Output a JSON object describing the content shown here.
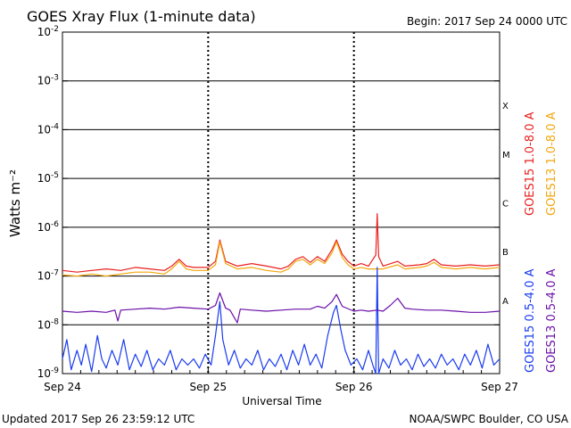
{
  "title": "GOES Xray Flux (1-minute data)",
  "begin_label": "Begin:  2017 Sep 24 0000 UTC",
  "footer": {
    "updated": "Updated 2017 Sep 26 23:59:12 UTC",
    "credit": "NOAA/SWPC Boulder, CO USA"
  },
  "legend": {
    "upper": [
      {
        "label": "GOES15 1.0-8.0 A",
        "color": "#e8201e"
      },
      {
        "label": "GOES13 1.0-8.0 A",
        "color": "#f2a60c"
      }
    ],
    "lower": [
      {
        "label": "GOES15 0.5-4.0 A",
        "color": "#1a3cf0"
      },
      {
        "label": "GOES13 0.5-4.0 A",
        "color": "#6a0fa8"
      }
    ]
  },
  "chart_data": {
    "type": "line",
    "title": "GOES Xray Flux (1-minute data)",
    "xlabel": "Universal Time",
    "ylabel": "Watts m⁻²",
    "y_scale": "log",
    "ylim": [
      1e-09,
      0.01
    ],
    "x_ticks": [
      "Sep 24",
      "Sep 25",
      "Sep 26",
      "Sep 27"
    ],
    "y_ticks": [
      {
        "base": "10",
        "exp": "-9"
      },
      {
        "base": "10",
        "exp": "-8"
      },
      {
        "base": "10",
        "exp": "-7"
      },
      {
        "base": "10",
        "exp": "-6"
      },
      {
        "base": "10",
        "exp": "-5"
      },
      {
        "base": "10",
        "exp": "-4"
      },
      {
        "base": "10",
        "exp": "-3"
      },
      {
        "base": "10",
        "exp": "-2"
      }
    ],
    "flare_classes": [
      {
        "label": "A",
        "level": 1e-08
      },
      {
        "label": "B",
        "level": 1e-07
      },
      {
        "label": "C",
        "level": 1e-06
      },
      {
        "label": "M",
        "level": 1e-05
      },
      {
        "label": "X",
        "level": 0.0001
      }
    ],
    "series": [
      {
        "name": "GOES15 1.0-8.0 A",
        "color": "#e8201e",
        "points": [
          [
            0,
            1.3e-07
          ],
          [
            0.1,
            1.2e-07
          ],
          [
            0.2,
            1.3e-07
          ],
          [
            0.3,
            1.4e-07
          ],
          [
            0.4,
            1.3e-07
          ],
          [
            0.5,
            1.5e-07
          ],
          [
            0.6,
            1.4e-07
          ],
          [
            0.7,
            1.3e-07
          ],
          [
            0.75,
            1.6e-07
          ],
          [
            0.8,
            2.2e-07
          ],
          [
            0.85,
            1.6e-07
          ],
          [
            0.9,
            1.5e-07
          ],
          [
            1.0,
            1.5e-07
          ],
          [
            1.05,
            2e-07
          ],
          [
            1.08,
            5.5e-07
          ],
          [
            1.12,
            2e-07
          ],
          [
            1.2,
            1.6e-07
          ],
          [
            1.3,
            1.8e-07
          ],
          [
            1.4,
            1.6e-07
          ],
          [
            1.5,
            1.4e-07
          ],
          [
            1.55,
            1.6e-07
          ],
          [
            1.6,
            2.2e-07
          ],
          [
            1.65,
            2.5e-07
          ],
          [
            1.7,
            1.9e-07
          ],
          [
            1.75,
            2.5e-07
          ],
          [
            1.8,
            2e-07
          ],
          [
            1.85,
            3.5e-07
          ],
          [
            1.88,
            5.5e-07
          ],
          [
            1.92,
            2.8e-07
          ],
          [
            1.96,
            2e-07
          ],
          [
            2.0,
            1.6e-07
          ],
          [
            2.05,
            1.8e-07
          ],
          [
            2.1,
            1.6e-07
          ],
          [
            2.15,
            2.7e-07
          ],
          [
            2.16,
            1.9e-06
          ],
          [
            2.17,
            2.5e-07
          ],
          [
            2.2,
            1.6e-07
          ],
          [
            2.3,
            2e-07
          ],
          [
            2.35,
            1.6e-07
          ],
          [
            2.45,
            1.7e-07
          ],
          [
            2.5,
            1.8e-07
          ],
          [
            2.55,
            2.2e-07
          ],
          [
            2.6,
            1.7e-07
          ],
          [
            2.7,
            1.6e-07
          ],
          [
            2.8,
            1.7e-07
          ],
          [
            2.9,
            1.6e-07
          ],
          [
            3.0,
            1.7e-07
          ]
        ]
      },
      {
        "name": "GOES13 1.0-8.0 A",
        "color": "#f2a60c",
        "points": [
          [
            0,
            1.05e-07
          ],
          [
            0.1,
            1e-07
          ],
          [
            0.2,
            1.1e-07
          ],
          [
            0.3,
            1e-07
          ],
          [
            0.4,
            1.1e-07
          ],
          [
            0.5,
            1.2e-07
          ],
          [
            0.6,
            1.2e-07
          ],
          [
            0.7,
            1.1e-07
          ],
          [
            0.75,
            1.4e-07
          ],
          [
            0.8,
            2e-07
          ],
          [
            0.85,
            1.4e-07
          ],
          [
            0.9,
            1.3e-07
          ],
          [
            1.0,
            1.3e-07
          ],
          [
            1.05,
            1.7e-07
          ],
          [
            1.08,
            5e-07
          ],
          [
            1.12,
            1.8e-07
          ],
          [
            1.2,
            1.4e-07
          ],
          [
            1.3,
            1.5e-07
          ],
          [
            1.4,
            1.3e-07
          ],
          [
            1.5,
            1.2e-07
          ],
          [
            1.55,
            1.4e-07
          ],
          [
            1.6,
            2e-07
          ],
          [
            1.65,
            2.2e-07
          ],
          [
            1.7,
            1.7e-07
          ],
          [
            1.75,
            2.2e-07
          ],
          [
            1.8,
            1.8e-07
          ],
          [
            1.85,
            3e-07
          ],
          [
            1.88,
            5e-07
          ],
          [
            1.92,
            2.4e-07
          ],
          [
            1.96,
            1.7e-07
          ],
          [
            2.0,
            1.4e-07
          ],
          [
            2.05,
            1.5e-07
          ],
          [
            2.1,
            1.4e-07
          ],
          [
            2.2,
            1.4e-07
          ],
          [
            2.3,
            1.7e-07
          ],
          [
            2.35,
            1.4e-07
          ],
          [
            2.45,
            1.5e-07
          ],
          [
            2.5,
            1.6e-07
          ],
          [
            2.55,
            1.9e-07
          ],
          [
            2.6,
            1.5e-07
          ],
          [
            2.7,
            1.4e-07
          ],
          [
            2.8,
            1.5e-07
          ],
          [
            2.9,
            1.4e-07
          ],
          [
            3.0,
            1.5e-07
          ]
        ]
      },
      {
        "name": "GOES15 0.5-4.0 A",
        "color": "#1a3cf0",
        "points": [
          [
            0,
            2e-09
          ],
          [
            0.03,
            5e-09
          ],
          [
            0.06,
            1.2e-09
          ],
          [
            0.1,
            3e-09
          ],
          [
            0.13,
            1.5e-09
          ],
          [
            0.16,
            4e-09
          ],
          [
            0.2,
            1.1e-09
          ],
          [
            0.24,
            6e-09
          ],
          [
            0.27,
            2e-09
          ],
          [
            0.3,
            1.3e-09
          ],
          [
            0.34,
            3e-09
          ],
          [
            0.38,
            1.5e-09
          ],
          [
            0.42,
            5e-09
          ],
          [
            0.46,
            1.2e-09
          ],
          [
            0.5,
            2.5e-09
          ],
          [
            0.54,
            1.4e-09
          ],
          [
            0.58,
            3e-09
          ],
          [
            0.62,
            1.2e-09
          ],
          [
            0.66,
            2e-09
          ],
          [
            0.7,
            1.5e-09
          ],
          [
            0.74,
            3e-09
          ],
          [
            0.78,
            1.2e-09
          ],
          [
            0.82,
            2e-09
          ],
          [
            0.86,
            1.5e-09
          ],
          [
            0.9,
            2e-09
          ],
          [
            0.94,
            1.3e-09
          ],
          [
            0.98,
            2.5e-09
          ],
          [
            1.02,
            1.5e-09
          ],
          [
            1.05,
            6e-09
          ],
          [
            1.08,
            3e-08
          ],
          [
            1.1,
            5e-09
          ],
          [
            1.14,
            1.5e-09
          ],
          [
            1.18,
            3e-09
          ],
          [
            1.22,
            1.3e-09
          ],
          [
            1.26,
            2e-09
          ],
          [
            1.3,
            1.5e-09
          ],
          [
            1.34,
            3e-09
          ],
          [
            1.38,
            1.2e-09
          ],
          [
            1.42,
            2e-09
          ],
          [
            1.46,
            1.4e-09
          ],
          [
            1.5,
            2.5e-09
          ],
          [
            1.54,
            1.2e-09
          ],
          [
            1.58,
            3e-09
          ],
          [
            1.62,
            1.5e-09
          ],
          [
            1.66,
            4e-09
          ],
          [
            1.7,
            1.5e-09
          ],
          [
            1.74,
            2.5e-09
          ],
          [
            1.78,
            1.3e-09
          ],
          [
            1.82,
            6e-09
          ],
          [
            1.86,
            1.8e-08
          ],
          [
            1.88,
            2.5e-08
          ],
          [
            1.91,
            8e-09
          ],
          [
            1.94,
            3e-09
          ],
          [
            1.98,
            1.5e-09
          ],
          [
            2.02,
            2e-09
          ],
          [
            2.06,
            1.2e-09
          ],
          [
            2.1,
            3e-09
          ],
          [
            2.13,
            1.5e-09
          ],
          [
            2.15,
            1e-09
          ],
          [
            2.16,
            1.5e-07
          ],
          [
            2.17,
            1e-09
          ],
          [
            2.2,
            2e-09
          ],
          [
            2.24,
            1.3e-09
          ],
          [
            2.28,
            3e-09
          ],
          [
            2.32,
            1.5e-09
          ],
          [
            2.36,
            2e-09
          ],
          [
            2.4,
            1.2e-09
          ],
          [
            2.44,
            2.5e-09
          ],
          [
            2.48,
            1.4e-09
          ],
          [
            2.52,
            2e-09
          ],
          [
            2.56,
            1.3e-09
          ],
          [
            2.6,
            2.5e-09
          ],
          [
            2.64,
            1.5e-09
          ],
          [
            2.68,
            2e-09
          ],
          [
            2.72,
            1.2e-09
          ],
          [
            2.76,
            2.5e-09
          ],
          [
            2.8,
            1.5e-09
          ],
          [
            2.84,
            3e-09
          ],
          [
            2.88,
            1.3e-09
          ],
          [
            2.92,
            4e-09
          ],
          [
            2.96,
            1.5e-09
          ],
          [
            3.0,
            2e-09
          ]
        ]
      },
      {
        "name": "GOES13 0.5-4.0 A",
        "color": "#6a0fa8",
        "points": [
          [
            0,
            1.9e-08
          ],
          [
            0.1,
            1.8e-08
          ],
          [
            0.2,
            1.9e-08
          ],
          [
            0.3,
            1.8e-08
          ],
          [
            0.36,
            2e-08
          ],
          [
            0.38,
            1.2e-08
          ],
          [
            0.4,
            2e-08
          ],
          [
            0.5,
            2.1e-08
          ],
          [
            0.6,
            2.2e-08
          ],
          [
            0.7,
            2.1e-08
          ],
          [
            0.8,
            2.3e-08
          ],
          [
            0.9,
            2.2e-08
          ],
          [
            1.0,
            2.1e-08
          ],
          [
            1.05,
            2.5e-08
          ],
          [
            1.08,
            4.5e-08
          ],
          [
            1.12,
            2.2e-08
          ],
          [
            1.15,
            2e-08
          ],
          [
            1.18,
            1.4e-08
          ],
          [
            1.2,
            1.1e-08
          ],
          [
            1.22,
            2.1e-08
          ],
          [
            1.3,
            2e-08
          ],
          [
            1.4,
            1.9e-08
          ],
          [
            1.5,
            2e-08
          ],
          [
            1.6,
            2.1e-08
          ],
          [
            1.7,
            2.1e-08
          ],
          [
            1.75,
            2.4e-08
          ],
          [
            1.8,
            2.2e-08
          ],
          [
            1.85,
            3e-08
          ],
          [
            1.88,
            4.2e-08
          ],
          [
            1.92,
            2.4e-08
          ],
          [
            2.0,
            1.9e-08
          ],
          [
            2.05,
            2e-08
          ],
          [
            2.1,
            1.9e-08
          ],
          [
            2.16,
            2e-08
          ],
          [
            2.2,
            1.9e-08
          ],
          [
            2.25,
            2.5e-08
          ],
          [
            2.3,
            3.5e-08
          ],
          [
            2.35,
            2.2e-08
          ],
          [
            2.4,
            2.1e-08
          ],
          [
            2.5,
            2e-08
          ],
          [
            2.6,
            2e-08
          ],
          [
            2.7,
            1.9e-08
          ],
          [
            2.8,
            1.8e-08
          ],
          [
            2.9,
            1.8e-08
          ],
          [
            3.0,
            1.9e-08
          ]
        ]
      }
    ]
  }
}
